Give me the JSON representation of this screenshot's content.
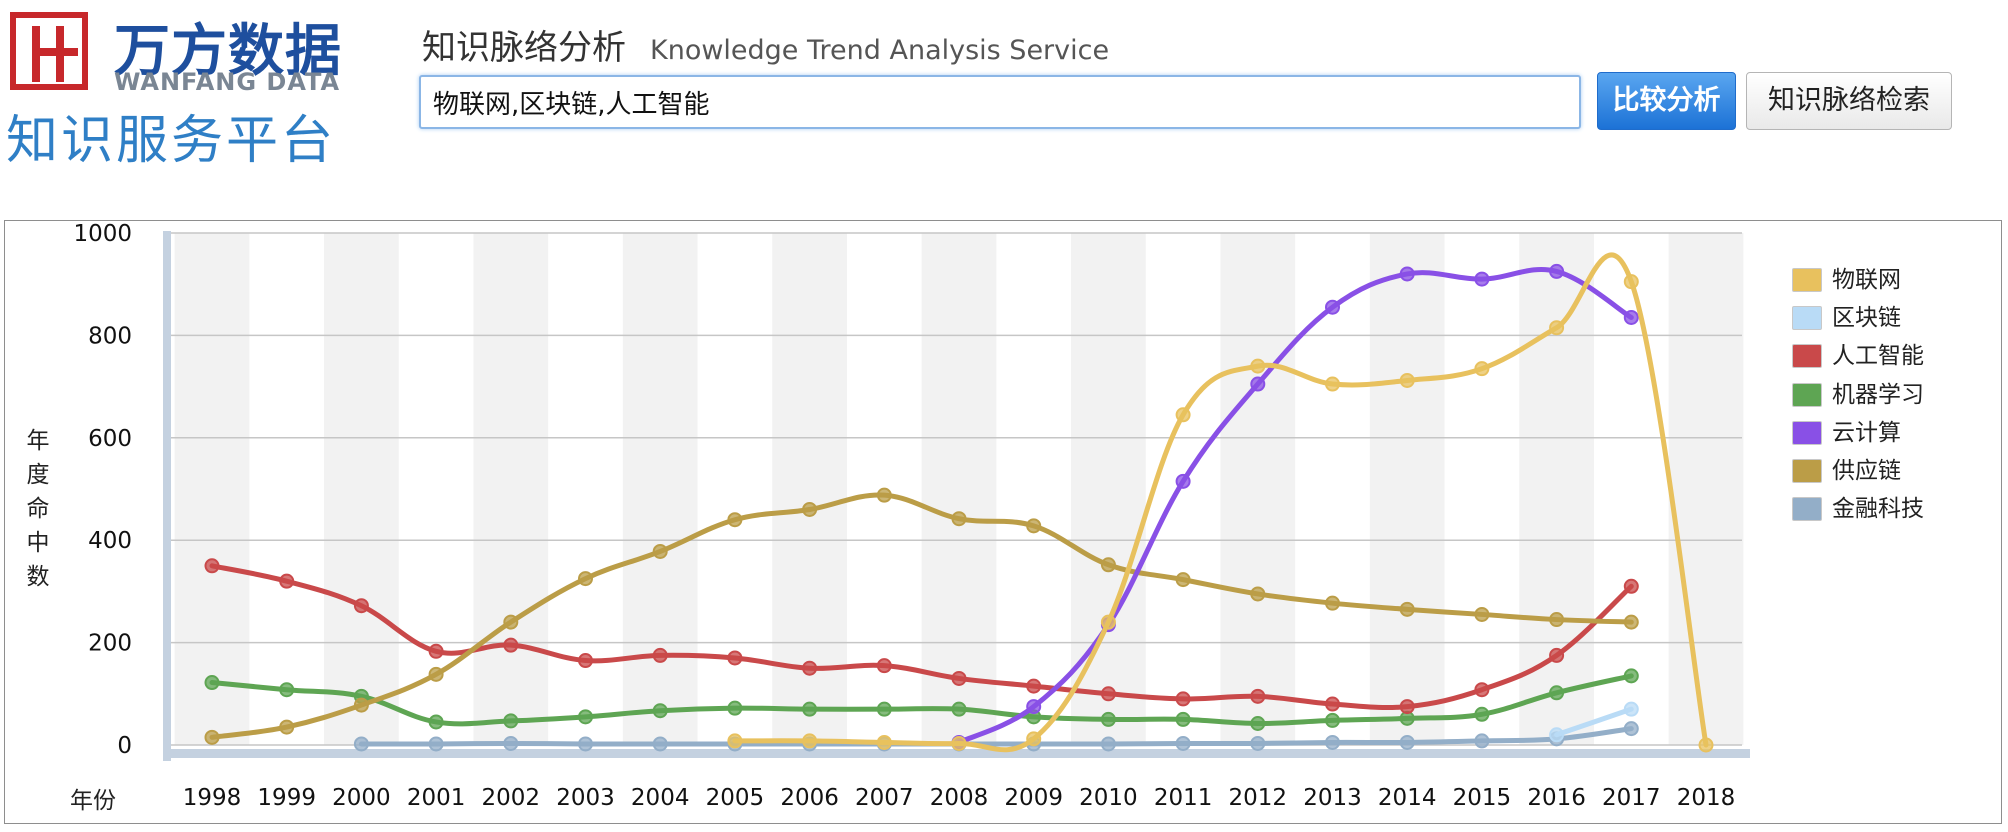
{
  "header": {
    "logo": {
      "brand_cn": "万方数据",
      "brand_en": "WANFANG DATA",
      "subtitle": "知识服务平台"
    },
    "title_cn": "知识脉络分析",
    "title_en": "Knowledge Trend Analysis Service",
    "search_value": "物联网,区块链,人工智能",
    "compare_button": "比较分析",
    "search_button": "知识脉络检索"
  },
  "chart_data": {
    "type": "line",
    "xlabel": "年份",
    "ylabel": "年度命中数",
    "ylim": [
      0,
      1000
    ],
    "yticks": [
      0,
      200,
      400,
      600,
      800,
      1000
    ],
    "categories": [
      "1998",
      "1999",
      "2000",
      "2001",
      "2002",
      "2003",
      "2004",
      "2005",
      "2006",
      "2007",
      "2008",
      "2009",
      "2010",
      "2011",
      "2012",
      "2013",
      "2014",
      "2015",
      "2016",
      "2017",
      "2018"
    ],
    "legend_position": "right",
    "grid": true,
    "series": [
      {
        "name": "物联网",
        "color": "#e8c15e",
        "values": [
          null,
          null,
          null,
          null,
          null,
          null,
          null,
          8,
          8,
          5,
          3,
          12,
          240,
          645,
          740,
          705,
          712,
          735,
          815,
          905,
          0
        ],
        "marker_values": [
          null,
          null,
          null,
          null,
          null,
          null,
          null,
          8,
          8,
          5,
          3,
          12,
          240,
          645,
          740,
          705,
          712,
          735,
          815,
          905,
          0
        ]
      },
      {
        "name": "区块链",
        "color": "#b9dbf6",
        "values": [
          null,
          null,
          null,
          null,
          null,
          null,
          null,
          null,
          null,
          null,
          null,
          null,
          null,
          null,
          null,
          null,
          null,
          null,
          20,
          70,
          null
        ]
      },
      {
        "name": "人工智能",
        "color": "#c9494a",
        "values": [
          350,
          320,
          272,
          183,
          195,
          165,
          175,
          170,
          150,
          155,
          130,
          115,
          100,
          90,
          95,
          80,
          75,
          108,
          175,
          310,
          null
        ]
      },
      {
        "name": "机器学习",
        "color": "#5ea553",
        "values": [
          122,
          108,
          95,
          45,
          47,
          55,
          67,
          72,
          70,
          70,
          70,
          55,
          50,
          50,
          42,
          48,
          52,
          60,
          102,
          135,
          null
        ]
      },
      {
        "name": "云计算",
        "color": "#8950e6",
        "values": [
          null,
          null,
          null,
          null,
          null,
          null,
          null,
          null,
          null,
          null,
          5,
          75,
          235,
          515,
          705,
          855,
          920,
          910,
          925,
          835,
          null
        ]
      },
      {
        "name": "供应链",
        "color": "#bb9d47",
        "values": [
          15,
          35,
          78,
          138,
          240,
          325,
          378,
          440,
          460,
          488,
          442,
          428,
          352,
          323,
          295,
          277,
          265,
          255,
          245,
          240,
          null
        ]
      },
      {
        "name": "金融科技",
        "color": "#93aec8",
        "values": [
          null,
          null,
          2,
          2,
          3,
          2,
          2,
          2,
          2,
          2,
          2,
          2,
          2,
          3,
          3,
          5,
          5,
          8,
          12,
          32,
          null
        ]
      }
    ]
  }
}
